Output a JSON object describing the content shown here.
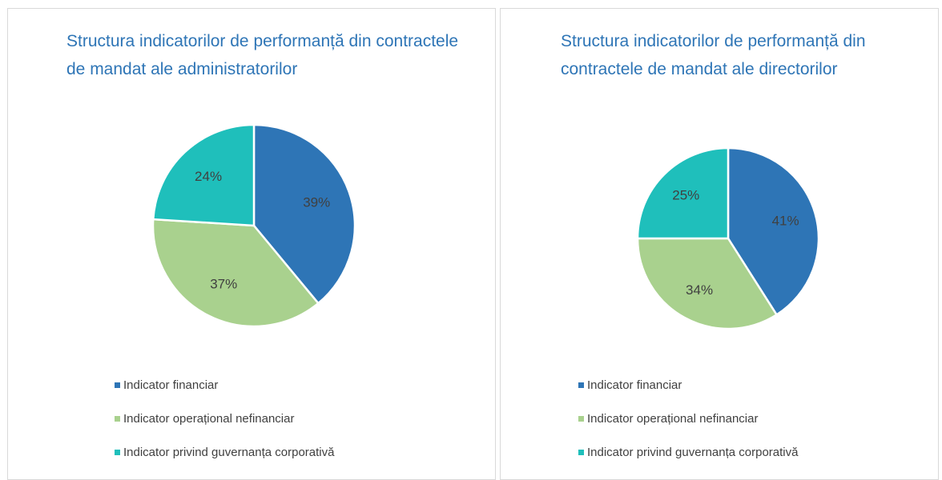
{
  "chart_data": [
    {
      "type": "pie",
      "title": "Structura indicatorilor de performanță din contractele de mandat ale administratorilor",
      "categories": [
        "Indicator financiar",
        "Indicator operațional nefinanciar",
        "Indicator privind guvernanța corporativă"
      ],
      "values": [
        39,
        37,
        24
      ],
      "value_labels": [
        "39%",
        "37%",
        "24%"
      ],
      "colors": [
        "#2e75b6",
        "#a9d18e",
        "#1fbfbb"
      ],
      "legend": "bottom"
    },
    {
      "type": "pie",
      "title": "Structura indicatorilor de performanță din contractele de mandat ale directorilor",
      "categories": [
        "Indicator financiar",
        "Indicator operațional nefinanciar",
        "Indicator privind guvernanța corporativă"
      ],
      "values": [
        41,
        34,
        25
      ],
      "value_labels": [
        "41%",
        "34%",
        "25%"
      ],
      "colors": [
        "#2e75b6",
        "#a9d18e",
        "#1fbfbb"
      ],
      "legend": "bottom"
    }
  ]
}
